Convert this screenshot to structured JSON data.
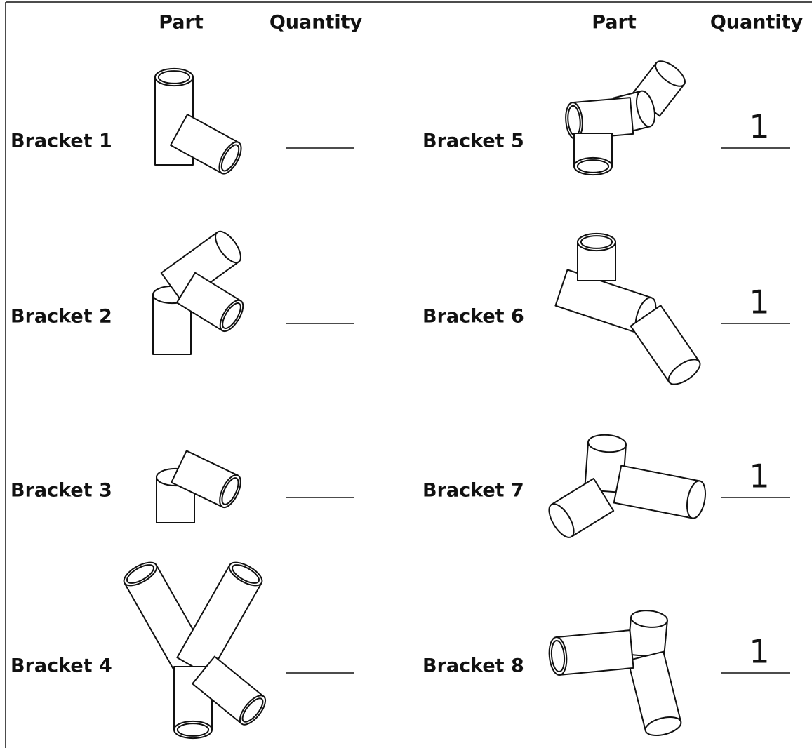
{
  "left": {
    "headers": [
      "Part",
      "Quantity"
    ],
    "rows": [
      {
        "label": "Bracket 1"
      },
      {
        "label": "Bracket 2"
      },
      {
        "label": "Bracket 3"
      },
      {
        "label": "Bracket 4"
      }
    ]
  },
  "right": {
    "headers": [
      "Part",
      "Quantity"
    ],
    "rows": [
      {
        "label": "Bracket 5",
        "quantity": 1
      },
      {
        "label": "Bracket 6",
        "quantity": 1
      },
      {
        "label": "Bracket 7",
        "quantity": 1
      },
      {
        "label": "Bracket 8",
        "quantity": 1
      }
    ]
  }
}
